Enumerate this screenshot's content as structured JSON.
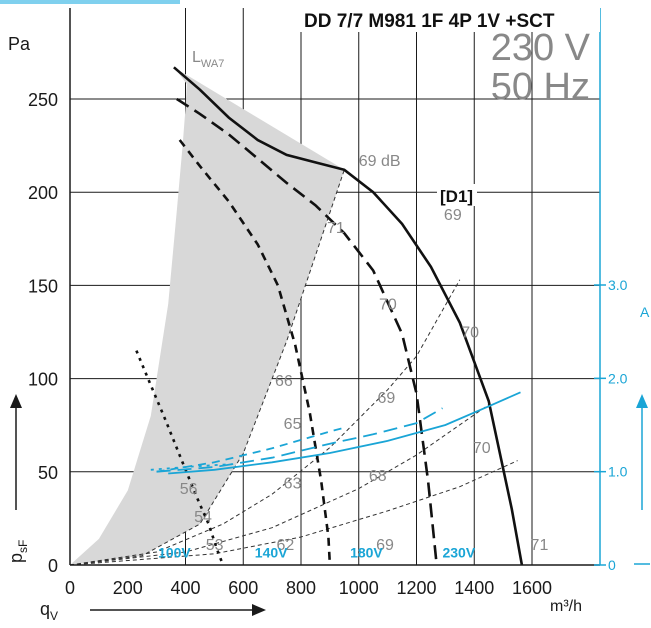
{
  "header_strip_color": "#7fd0ee",
  "chart_data": {
    "type": "line",
    "title": "DD 7/7 M981 1F 4P 1V +SCT",
    "voltage": "230 V",
    "frequency": "50 Hz",
    "model_tag": "[D1]",
    "xlabel": "m³/h",
    "xsymbol": "q",
    "xsymbol_sub": "V",
    "ylabel": "Pa",
    "ysymbol": "p",
    "ysymbol_sub": "sF",
    "y2label": "A",
    "lwa_label": "L",
    "lwa_sub": "WA7",
    "xlim": [
      0,
      1800
    ],
    "ylim": [
      0,
      280
    ],
    "y2lim": [
      0,
      3.5
    ],
    "x_ticks": [
      "0",
      "200",
      "400",
      "600",
      "800",
      "1000",
      "1200",
      "1400",
      "1600"
    ],
    "y_ticks": [
      "0",
      "50",
      "100",
      "150",
      "200",
      "250"
    ],
    "y2_ticks": [
      "0",
      "1.0",
      "2.0",
      "3.0"
    ],
    "colors": {
      "axis": "#1a1a1a",
      "current": "#1aa5d6",
      "grey_text": "#888888",
      "shade": "#d8d8d8"
    },
    "fan_curves": [
      {
        "label": "230V",
        "style": "solid",
        "points": [
          [
            360,
            267
          ],
          [
            450,
            255
          ],
          [
            550,
            240
          ],
          [
            650,
            228
          ],
          [
            750,
            220
          ],
          [
            850,
            216
          ],
          [
            950,
            212
          ],
          [
            1050,
            200
          ],
          [
            1150,
            183
          ],
          [
            1250,
            160
          ],
          [
            1350,
            130
          ],
          [
            1450,
            88
          ],
          [
            1530,
            30
          ],
          [
            1565,
            0
          ]
        ]
      },
      {
        "label": "180V",
        "style": "long-dash",
        "points": [
          [
            370,
            250
          ],
          [
            450,
            242
          ],
          [
            550,
            231
          ],
          [
            650,
            218
          ],
          [
            750,
            205
          ],
          [
            850,
            193
          ],
          [
            950,
            178
          ],
          [
            1050,
            158
          ],
          [
            1150,
            124
          ],
          [
            1200,
            92
          ],
          [
            1240,
            45
          ],
          [
            1270,
            0
          ]
        ]
      },
      {
        "label": "140V",
        "style": "dash",
        "points": [
          [
            380,
            228
          ],
          [
            450,
            214
          ],
          [
            550,
            195
          ],
          [
            650,
            172
          ],
          [
            720,
            150
          ],
          [
            780,
            118
          ],
          [
            830,
            82
          ],
          [
            870,
            45
          ],
          [
            895,
            15
          ],
          [
            900,
            0
          ]
        ]
      },
      {
        "label": "100V",
        "style": "dot",
        "points": [
          [
            230,
            115
          ],
          [
            270,
            100
          ],
          [
            330,
            78
          ],
          [
            390,
            55
          ],
          [
            440,
            36
          ],
          [
            480,
            22
          ],
          [
            510,
            8
          ],
          [
            530,
            0
          ]
        ]
      }
    ],
    "system_curves": [
      {
        "points": [
          [
            0,
            0
          ],
          [
            300,
            7
          ],
          [
            530,
            22
          ],
          [
            700,
            38
          ],
          [
            900,
            63
          ],
          [
            1100,
            94
          ],
          [
            1200,
            112
          ],
          [
            1350,
            153
          ]
        ]
      },
      {
        "points": [
          [
            0,
            0
          ],
          [
            400,
            7
          ],
          [
            700,
            20
          ],
          [
            1000,
            41
          ],
          [
            1200,
            59
          ],
          [
            1450,
            86
          ]
        ]
      },
      {
        "points": [
          [
            0,
            0
          ],
          [
            500,
            6
          ],
          [
            800,
            15
          ],
          [
            1100,
            29
          ],
          [
            1350,
            42
          ],
          [
            1550,
            56
          ]
        ]
      }
    ],
    "current_curves": [
      {
        "label": "230V",
        "style": "solid",
        "points": [
          [
            340,
            0.98
          ],
          [
            500,
            1.02
          ],
          [
            700,
            1.1
          ],
          [
            900,
            1.2
          ],
          [
            1100,
            1.33
          ],
          [
            1300,
            1.5
          ],
          [
            1450,
            1.7
          ],
          [
            1560,
            1.85
          ]
        ]
      },
      {
        "label": "180V",
        "style": "long-dash",
        "points": [
          [
            300,
            1.0
          ],
          [
            500,
            1.05
          ],
          [
            700,
            1.15
          ],
          [
            900,
            1.3
          ],
          [
            1050,
            1.4
          ],
          [
            1200,
            1.52
          ],
          [
            1290,
            1.68
          ]
        ]
      },
      {
        "label": "140V",
        "style": "dash",
        "points": [
          [
            300,
            1.0
          ],
          [
            500,
            1.1
          ],
          [
            700,
            1.25
          ],
          [
            900,
            1.43
          ],
          [
            950,
            1.47
          ]
        ]
      },
      {
        "label": "100V",
        "style": "dot",
        "points": [
          [
            280,
            1.02
          ],
          [
            400,
            1.05
          ],
          [
            500,
            1.07
          ],
          [
            560,
            1.08
          ]
        ]
      }
    ],
    "lwa_region": {
      "left_edge": [
        [
          0,
          0
        ],
        [
          100,
          14
        ],
        [
          200,
          40
        ],
        [
          280,
          80
        ],
        [
          340,
          140
        ],
        [
          370,
          190
        ],
        [
          390,
          225
        ],
        [
          400,
          245
        ],
        [
          405,
          258
        ],
        [
          360,
          267
        ]
      ],
      "right_edge": [
        [
          950,
          212
        ],
        [
          750,
          120
        ],
        [
          600,
          60
        ],
        [
          450,
          22
        ],
        [
          250,
          5
        ],
        [
          0,
          0
        ]
      ]
    },
    "annotations": [
      {
        "text": "69 dB",
        "x": 1000,
        "y": 214
      },
      {
        "text": "69",
        "x": 1295,
        "y": 185
      },
      {
        "text": "70",
        "x": 1355,
        "y": 122
      },
      {
        "text": "70",
        "x": 1395,
        "y": 60
      },
      {
        "text": "71",
        "x": 1595,
        "y": 8
      },
      {
        "text": "71",
        "x": 890,
        "y": 178
      },
      {
        "text": "70",
        "x": 1070,
        "y": 137
      },
      {
        "text": "69",
        "x": 1065,
        "y": 87
      },
      {
        "text": "68",
        "x": 1035,
        "y": 45
      },
      {
        "text": "69",
        "x": 1060,
        "y": 8
      },
      {
        "text": "66",
        "x": 710,
        "y": 96
      },
      {
        "text": "65",
        "x": 740,
        "y": 73
      },
      {
        "text": "63",
        "x": 740,
        "y": 41
      },
      {
        "text": "62",
        "x": 715,
        "y": 8
      },
      {
        "text": "56",
        "x": 380,
        "y": 38
      },
      {
        "text": "54",
        "x": 430,
        "y": 23
      },
      {
        "text": "53",
        "x": 470,
        "y": 8
      }
    ],
    "voltage_labels": [
      {
        "text": "100V",
        "x": 305,
        "y": 4
      },
      {
        "text": "140V",
        "x": 640,
        "y": 4
      },
      {
        "text": "180V",
        "x": 970,
        "y": 4
      },
      {
        "text": "230V",
        "x": 1290,
        "y": 4
      }
    ]
  }
}
